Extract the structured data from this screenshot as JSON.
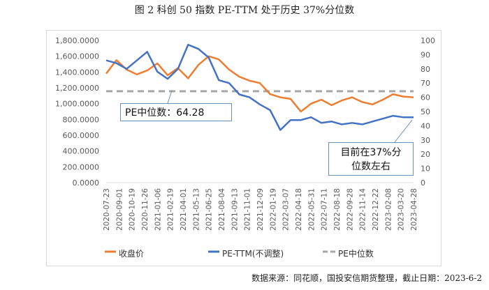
{
  "title": "图 2 科创 50 指数 PE-TTM 处于历史 37%分位数",
  "source": "数据来源：同花顺，国投安信期货整理，截止日期：2023-6-2",
  "chart_data": {
    "type": "line",
    "x_tick_labels": [
      "2020-07-23",
      "2020-09-01",
      "2020-10-19",
      "2020-11-26",
      "2021-01-06",
      "2021-02-19",
      "2021-04-01",
      "2021-05-13",
      "2021-06-25",
      "2021-08-04",
      "2021-09-13",
      "2021-11-01",
      "2021-12-09",
      "2022-01-19",
      "2022-03-07",
      "2022-04-18",
      "2022-05-31",
      "2022-07-11",
      "2022-08-18",
      "2022-09-28",
      "2022-11-14",
      "2022-12-22",
      "2023-02-08",
      "2023-03-20",
      "2023-04-28"
    ],
    "y_left": {
      "ticks": [
        "0.0000",
        "200.0000",
        "400.0000",
        "600.0000",
        "800.0000",
        "1,000.0000",
        "1,200.0000",
        "1,400.0000",
        "1,600.0000",
        "1,800.0000"
      ],
      "range": [
        0,
        1800
      ]
    },
    "y_right": {
      "ticks": [
        "0",
        "10",
        "20",
        "30",
        "40",
        "50",
        "60",
        "70",
        "80",
        "90",
        "100"
      ],
      "range": [
        0,
        100
      ]
    },
    "series": [
      {
        "name": "收盘价",
        "axis": "left",
        "color": "#ED7D31",
        "values": [
          1380,
          1550,
          1430,
          1370,
          1420,
          1510,
          1360,
          1450,
          1320,
          1490,
          1600,
          1560,
          1430,
          1340,
          1290,
          1260,
          1120,
          1080,
          1060,
          900,
          1000,
          1050,
          980,
          1040,
          1080,
          1020,
          990,
          1050,
          1120,
          1090,
          1080
        ]
      },
      {
        "name": "PE-TTM(不调整)",
        "axis": "right",
        "color": "#4472C4",
        "values": [
          86,
          84,
          80,
          86,
          92,
          78,
          73,
          80,
          97,
          94,
          88,
          72,
          70,
          62,
          60,
          55,
          51,
          37,
          44,
          44,
          46,
          42,
          43,
          41,
          42,
          41,
          43,
          45,
          47,
          46,
          46
        ]
      },
      {
        "name": "PE中位数",
        "axis": "right",
        "color": "#A6A6A6",
        "dashed": true,
        "values": [
          64.28
        ]
      }
    ],
    "annotations": [
      "PE中位数：64.28",
      "目前在37%分",
      "位数左右"
    ]
  },
  "callouts": {
    "median": "PE中位数：64.28",
    "current_line1": "目前在37%分",
    "current_line2": "位数左右"
  },
  "legend": [
    "收盘价",
    "PE-TTM(不调整)",
    "PE中位数"
  ]
}
